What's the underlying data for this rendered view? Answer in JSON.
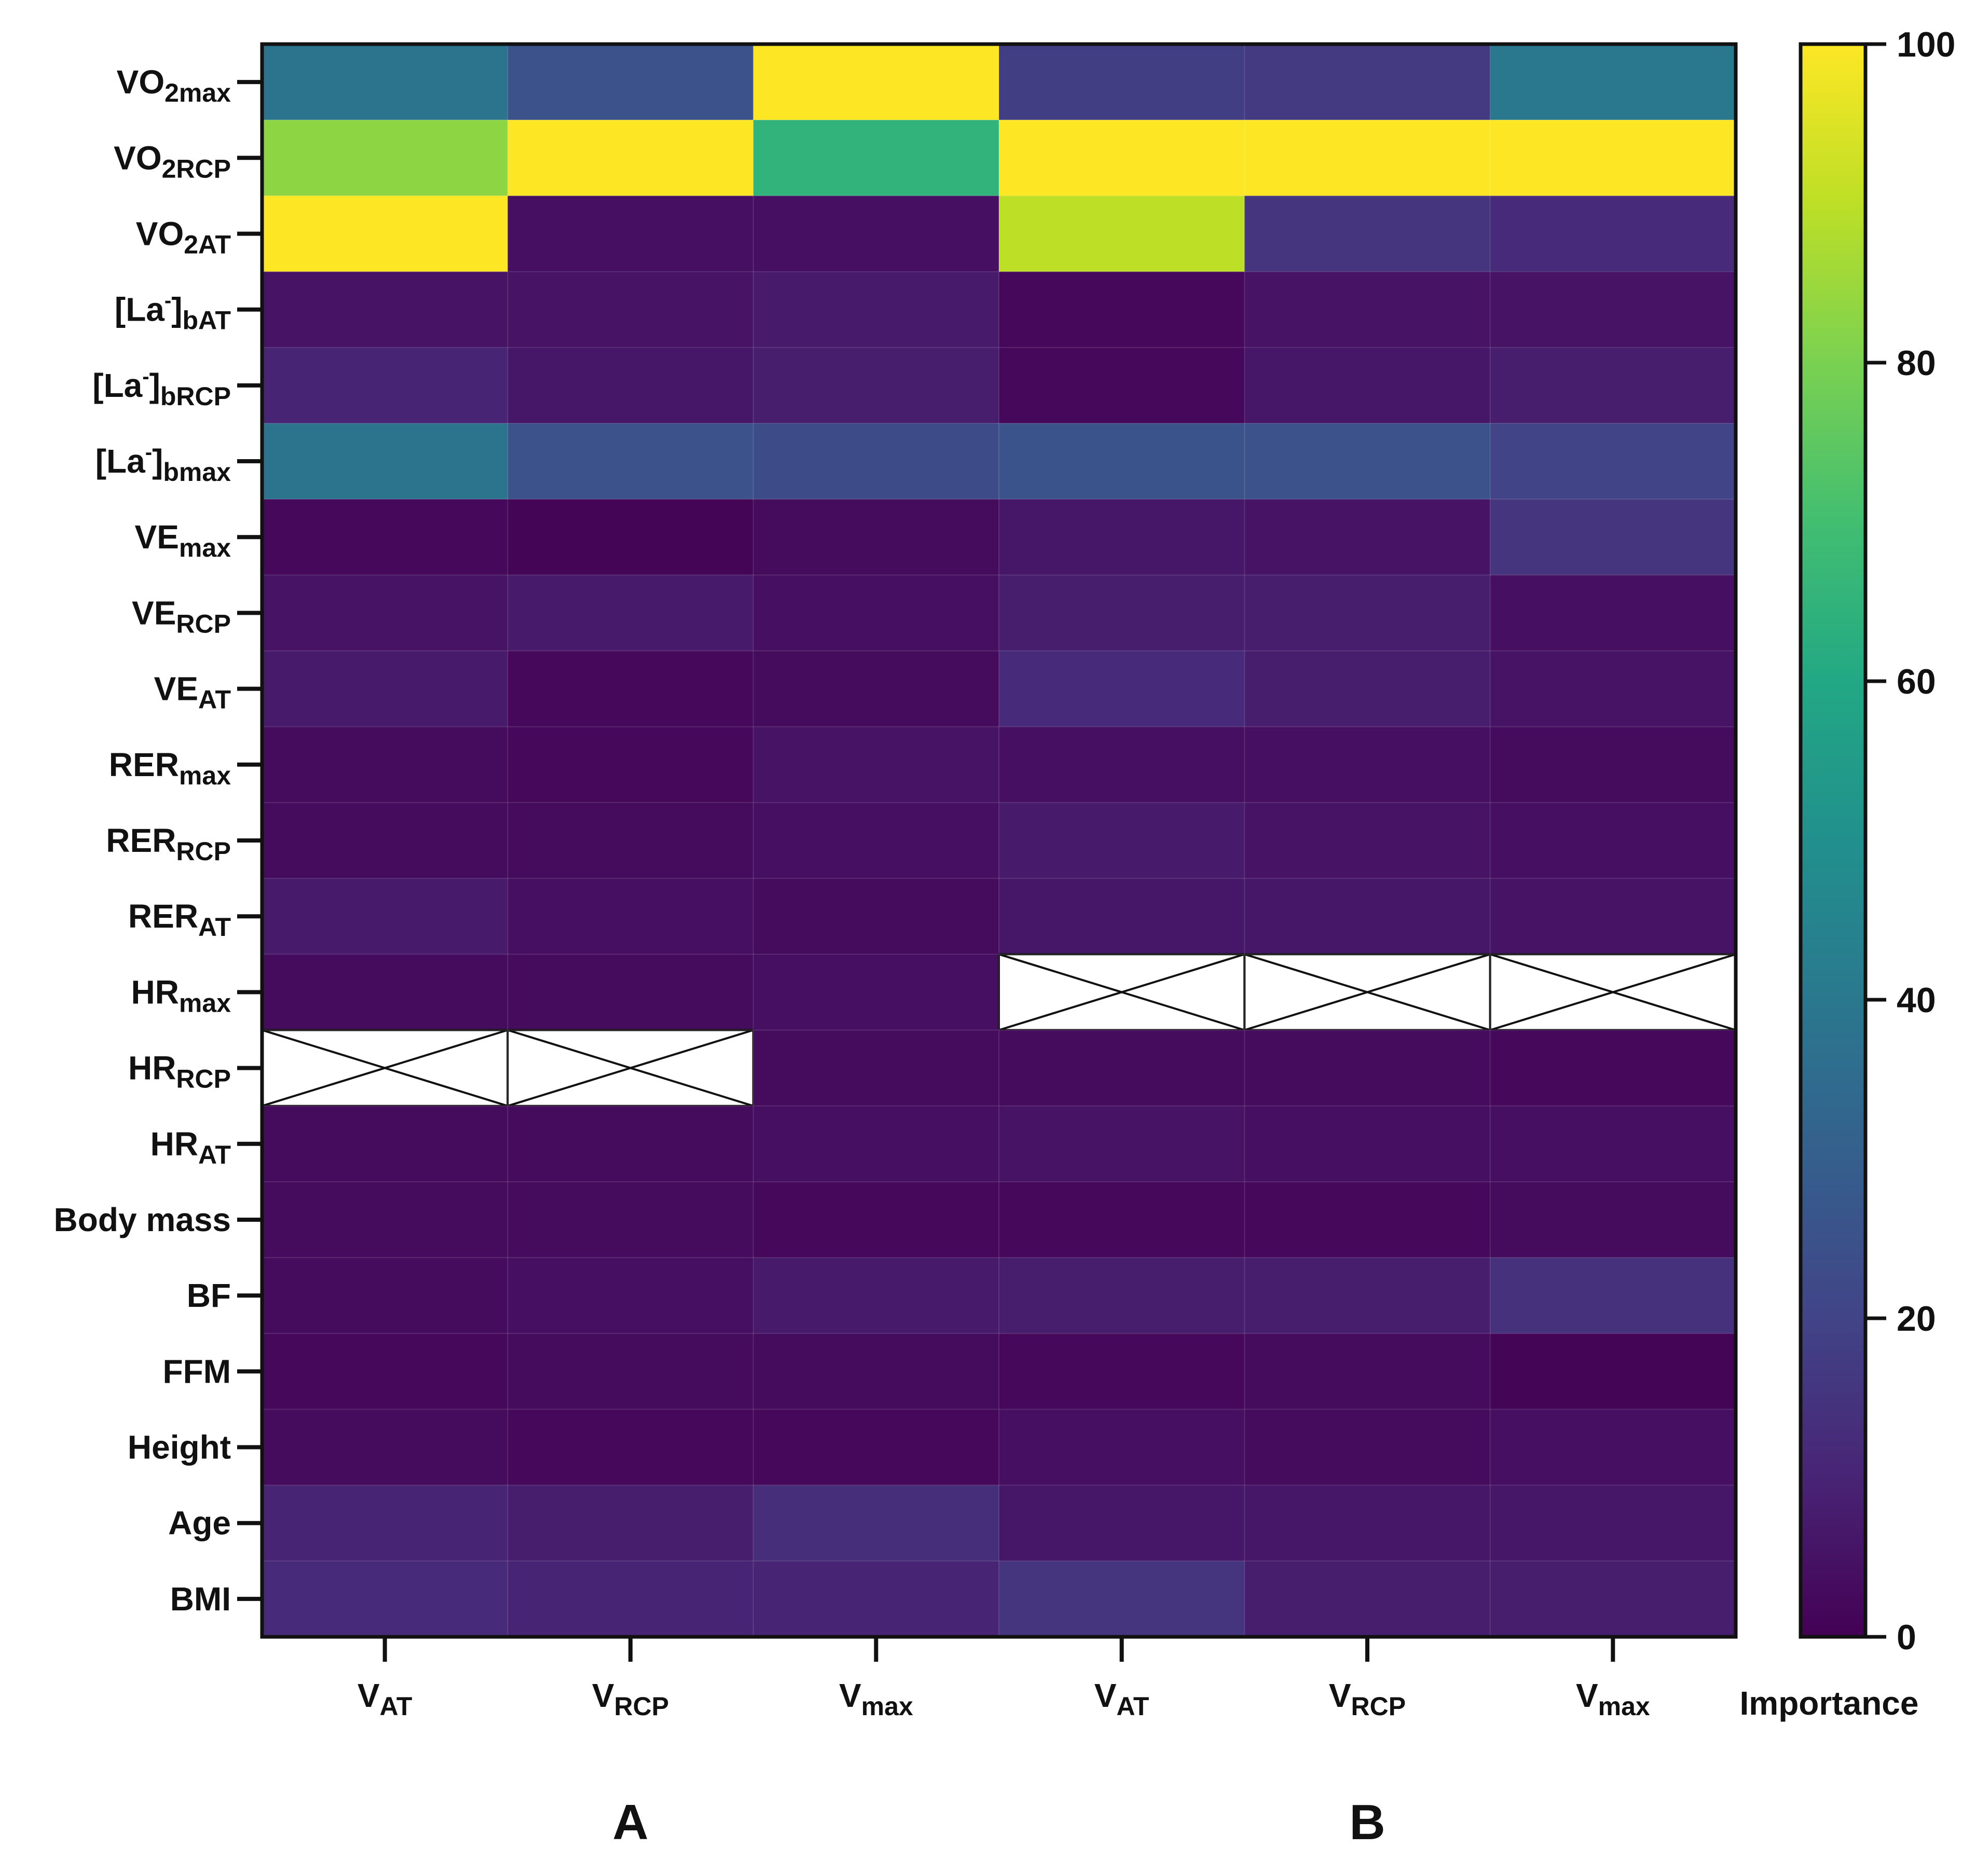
{
  "chart_data": {
    "type": "heatmap",
    "title": "",
    "colorbar": {
      "label": "Importance",
      "range": [
        0,
        100
      ],
      "ticks": [
        "0",
        "20",
        "40",
        "60",
        "80",
        "100"
      ],
      "colormap": "viridis"
    },
    "rows": [
      {
        "main": "VO",
        "sub": "2max",
        "sup": ""
      },
      {
        "main": "VO",
        "sub": "2RCP",
        "sup": ""
      },
      {
        "main": "VO",
        "sub": "2AT",
        "sup": ""
      },
      {
        "main": "[La",
        "sup": "-",
        "close": "]",
        "sub": "bAT"
      },
      {
        "main": "[La",
        "sup": "-",
        "close": "]",
        "sub": "bRCP"
      },
      {
        "main": "[La",
        "sup": "-",
        "close": "]",
        "sub": "bmax"
      },
      {
        "main": "VE",
        "sub": "max",
        "sup": ""
      },
      {
        "main": "VE",
        "sub": "RCP",
        "sup": ""
      },
      {
        "main": "VE",
        "sub": "AT",
        "sup": ""
      },
      {
        "main": "RER",
        "sub": "max",
        "sup": ""
      },
      {
        "main": "RER",
        "sub": "RCP",
        "sup": ""
      },
      {
        "main": "RER",
        "sub": "AT",
        "sup": ""
      },
      {
        "main": "HR",
        "sub": "max",
        "sup": ""
      },
      {
        "main": "HR",
        "sub": "RCP",
        "sup": ""
      },
      {
        "main": "HR",
        "sub": "AT",
        "sup": ""
      },
      {
        "main": "Body mass",
        "sub": "",
        "sup": ""
      },
      {
        "main": "BF",
        "sub": "",
        "sup": ""
      },
      {
        "main": "FFM",
        "sub": "",
        "sup": ""
      },
      {
        "main": "Height",
        "sub": "",
        "sup": ""
      },
      {
        "main": "Age",
        "sub": "",
        "sup": ""
      },
      {
        "main": "BMI",
        "sub": "",
        "sup": ""
      }
    ],
    "columns": [
      {
        "main": "V",
        "sub": "AT",
        "group": "A"
      },
      {
        "main": "V",
        "sub": "RCP",
        "group": "A"
      },
      {
        "main": "V",
        "sub": "max",
        "group": "A"
      },
      {
        "main": "V",
        "sub": "AT",
        "group": "B"
      },
      {
        "main": "V",
        "sub": "RCP",
        "group": "B"
      },
      {
        "main": "V",
        "sub": "max",
        "group": "B"
      }
    ],
    "groups": [
      "A",
      "B"
    ],
    "values": [
      [
        38,
        25,
        100,
        18,
        17,
        40
      ],
      [
        83,
        100,
        65,
        100,
        100,
        100
      ],
      [
        100,
        4,
        4,
        90,
        15,
        12
      ],
      [
        5,
        5,
        7,
        2,
        5,
        5
      ],
      [
        10,
        6,
        8,
        2,
        6,
        8
      ],
      [
        38,
        25,
        23,
        26,
        25,
        20
      ],
      [
        2,
        1,
        3,
        6,
        5,
        15
      ],
      [
        5,
        7,
        4,
        8,
        8,
        4
      ],
      [
        7,
        2,
        3,
        12,
        8,
        5
      ],
      [
        3,
        2,
        5,
        4,
        4,
        3
      ],
      [
        3,
        3,
        4,
        7,
        5,
        4
      ],
      [
        7,
        4,
        3,
        6,
        6,
        5
      ],
      [
        3,
        3,
        4,
        null,
        null,
        null
      ],
      [
        null,
        null,
        3,
        3,
        3,
        2
      ],
      [
        3,
        3,
        4,
        5,
        4,
        4
      ],
      [
        3,
        3,
        2,
        2,
        2,
        3
      ],
      [
        3,
        4,
        7,
        8,
        8,
        14
      ],
      [
        2,
        3,
        3,
        2,
        3,
        1
      ],
      [
        3,
        2,
        2,
        4,
        3,
        4
      ],
      [
        10,
        8,
        13,
        6,
        6,
        6
      ],
      [
        12,
        10,
        10,
        15,
        8,
        8
      ]
    ]
  }
}
